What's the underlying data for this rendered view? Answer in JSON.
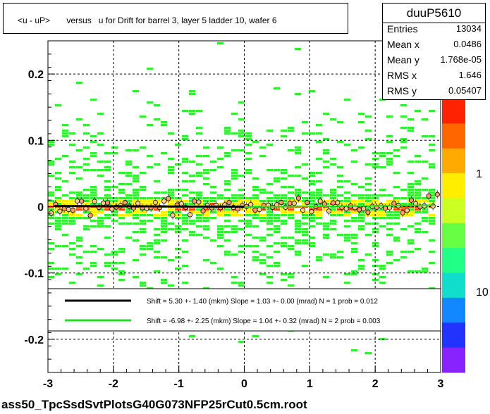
{
  "title": "<u - uP>       versus   u for Drift for barrel 3, layer 5 ladder 10, wafer 6",
  "stats": {
    "name": "duuP5610",
    "rows": [
      {
        "label": "Entries",
        "value": "13034"
      },
      {
        "label": "Mean x",
        "value": "0.0486"
      },
      {
        "label": "Mean y",
        "value": "1.768e-05"
      },
      {
        "label": "RMS x",
        "value": "1.646"
      },
      {
        "label": "RMS y",
        "value": "0.05407"
      }
    ]
  },
  "legend": [
    {
      "text": "Shift =     5.30 +- 1.40 (mkm) Slope =     1.03 +- 0.00 (mrad)  N = 1 prob = 0.012",
      "color": "#000000"
    },
    {
      "text": "Shift =    -6.98 +- 2.25 (mkm) Slope =     1.04 +- 0.32 (mrad)  N = 2 prob = 0.003",
      "color": "#22dd22"
    }
  ],
  "filename": "ass50_TpcSsdSvtPlotsG40G073NFP25rCut0.5cm.root",
  "colors": {
    "low": "#33ee33",
    "mid": "#ffee00",
    "high": "#ff4400",
    "fit_black": "#000000",
    "fit_green": "#22dd22",
    "profile_marker": "#ff9966"
  },
  "chart_data": {
    "type": "heatmap",
    "xlim": [
      -3,
      3
    ],
    "ylim": [
      -0.25,
      0.25
    ],
    "x_ticks": [
      -3,
      -2,
      -1,
      0,
      1,
      2,
      3
    ],
    "x_tick_labels": [
      "-3",
      "-2",
      "-1",
      "0",
      "1",
      "2",
      "3"
    ],
    "y_ticks": [
      -0.2,
      -0.1,
      0,
      0.1,
      0.2
    ],
    "y_tick_labels": [
      "-0.2",
      "-0.1",
      "0",
      "0.1",
      "0.2"
    ],
    "grid": true,
    "colorbar": {
      "scale": "log",
      "labels": [
        "10",
        "1"
      ],
      "top_label_partial": "0"
    },
    "band_center_y": 0.0,
    "band_rms_y": 0.05407,
    "series": [
      {
        "x": [
          -2.9,
          -2.5,
          -2.0,
          -1.5,
          -1.0,
          -0.5,
          0.0
        ],
        "y": [
          0.001,
          0.0008,
          0.0006,
          0.0005,
          0.0003,
          0.0001,
          0.0
        ]
      },
      {
        "x": [
          0.0,
          0.5,
          1.0,
          1.5,
          2.0,
          2.5,
          2.9
        ],
        "y": [
          -0.0005,
          0.0,
          0.0004,
          0.0009,
          0.0013,
          0.0018,
          0.0022
        ]
      }
    ]
  }
}
